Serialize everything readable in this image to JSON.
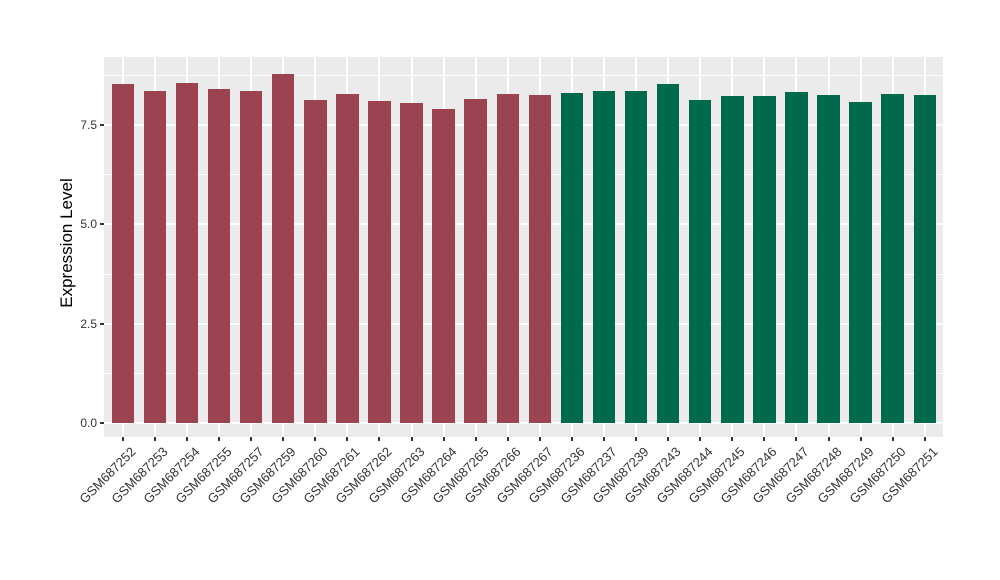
{
  "figure": {
    "background_color": "#FFFFFF",
    "title": "",
    "legend": "none"
  },
  "chart_data": {
    "type": "bar",
    "title": "",
    "xlabel": "",
    "ylabel": "Expression Level",
    "ylim": [
      0,
      9.2
    ],
    "ytick_labels": [
      "0.0",
      "2.5",
      "5.0",
      "7.5"
    ],
    "ytick_values": [
      0,
      2.5,
      5,
      7.5
    ],
    "minor_ytick_values": [
      1.25,
      3.75,
      6.25,
      8.75
    ],
    "grid": "white major and minor gridlines on gray panel (ggplot style); vertical major gridlines at each category",
    "panel_color": "#EBEBEB",
    "gridline_color": "#FFFFFF",
    "tick_color": "#333333",
    "groups": [
      {
        "name": "group-1",
        "color": "#9C4352"
      },
      {
        "name": "group-2",
        "color": "#016A4C"
      }
    ],
    "bars": [
      {
        "label": "GSM687252",
        "value": 8.52,
        "group": 0
      },
      {
        "label": "GSM687253",
        "value": 8.35,
        "group": 0
      },
      {
        "label": "GSM687254",
        "value": 8.56,
        "group": 0
      },
      {
        "label": "GSM687255",
        "value": 8.39,
        "group": 0
      },
      {
        "label": "GSM687257",
        "value": 8.36,
        "group": 0
      },
      {
        "label": "GSM687259",
        "value": 8.78,
        "group": 0
      },
      {
        "label": "GSM687260",
        "value": 8.12,
        "group": 0
      },
      {
        "label": "GSM687261",
        "value": 8.28,
        "group": 0
      },
      {
        "label": "GSM687262",
        "value": 8.1,
        "group": 0
      },
      {
        "label": "GSM687263",
        "value": 8.05,
        "group": 0
      },
      {
        "label": "GSM687264",
        "value": 7.9,
        "group": 0
      },
      {
        "label": "GSM687265",
        "value": 8.15,
        "group": 0
      },
      {
        "label": "GSM687266",
        "value": 8.26,
        "group": 0
      },
      {
        "label": "GSM687267",
        "value": 8.24,
        "group": 0
      },
      {
        "label": "GSM687236",
        "value": 8.29,
        "group": 1
      },
      {
        "label": "GSM687237",
        "value": 8.36,
        "group": 1
      },
      {
        "label": "GSM687239",
        "value": 8.35,
        "group": 1
      },
      {
        "label": "GSM687243",
        "value": 8.53,
        "group": 1
      },
      {
        "label": "GSM687244",
        "value": 8.12,
        "group": 1
      },
      {
        "label": "GSM687245",
        "value": 8.22,
        "group": 1
      },
      {
        "label": "GSM687246",
        "value": 8.22,
        "group": 1
      },
      {
        "label": "GSM687247",
        "value": 8.32,
        "group": 1
      },
      {
        "label": "GSM687248",
        "value": 8.25,
        "group": 1
      },
      {
        "label": "GSM687249",
        "value": 8.06,
        "group": 1
      },
      {
        "label": "GSM687250",
        "value": 8.26,
        "group": 1
      },
      {
        "label": "GSM687251",
        "value": 8.24,
        "group": 1
      }
    ]
  }
}
